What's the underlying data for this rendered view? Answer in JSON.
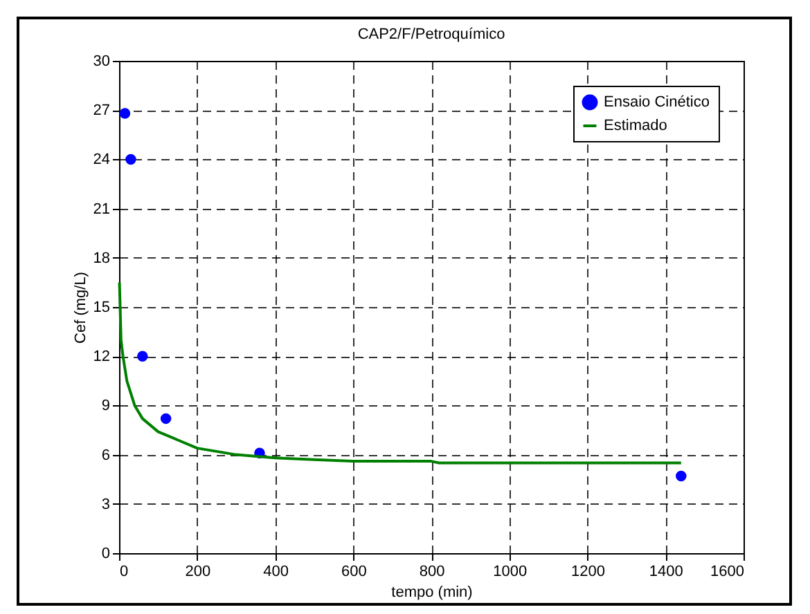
{
  "chart_data": {
    "type": "scatter",
    "title": "CAP2/F/Petroquímico",
    "xlabel": "tempo (min)",
    "ylabel": "Cef (mg/L)",
    "xlim": [
      0,
      1600
    ],
    "xticks": [
      0,
      200,
      400,
      600,
      800,
      1000,
      1200,
      1400,
      1600
    ],
    "ylim": [
      0,
      30
    ],
    "yticks": [
      0,
      3,
      6,
      9,
      12,
      15,
      18,
      21,
      24,
      27,
      30
    ],
    "grid": true,
    "legend": "top right",
    "series": [
      {
        "name": "Ensaio Cinético",
        "color": "#0000ff",
        "marker": "circle",
        "x": [
          15,
          30,
          60,
          120,
          360,
          1440
        ],
        "values": [
          26.8,
          24,
          12,
          8.2,
          6.1,
          4.7
        ]
      },
      {
        "name": "Estimado",
        "type": "line",
        "color": "#008000",
        "marker": "none",
        "line_style": "solid",
        "x": [
          1,
          5,
          10,
          20,
          40,
          60,
          100,
          150,
          200,
          300,
          400,
          500,
          600,
          800,
          820,
          1000,
          1440
        ],
        "values": [
          16.5,
          13,
          12,
          10.5,
          9,
          8.2,
          7.4,
          6.9,
          6.4,
          6.0,
          5.8,
          5.7,
          5.6,
          5.6,
          5.5,
          5.5,
          5.5
        ]
      }
    ]
  }
}
